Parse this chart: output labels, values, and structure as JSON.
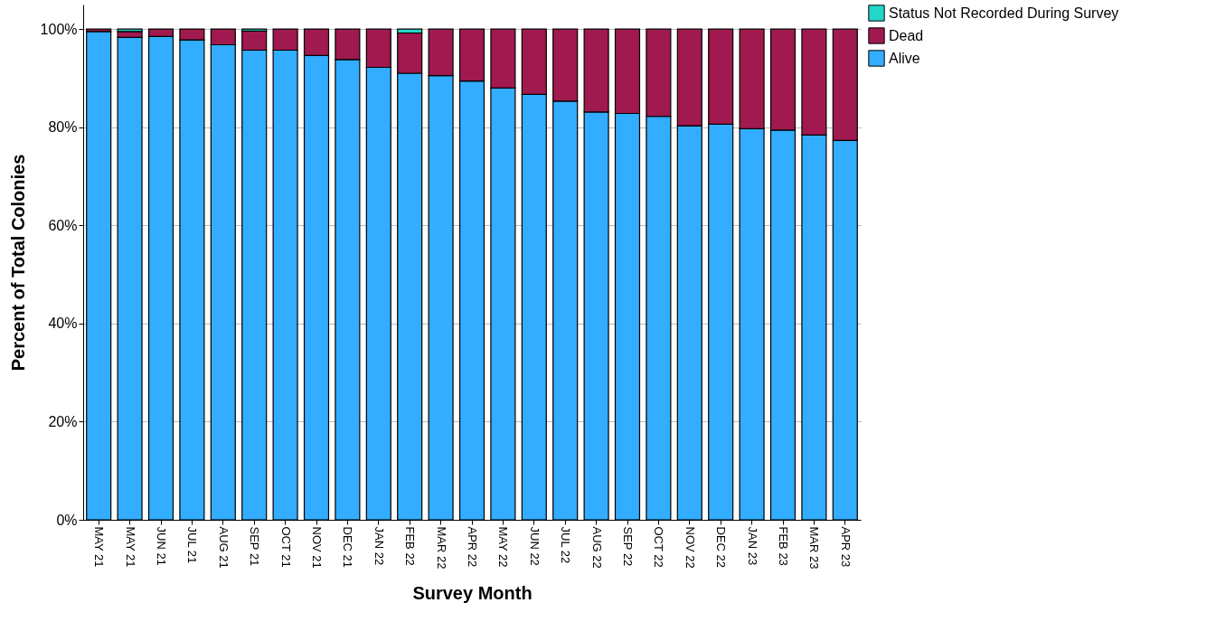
{
  "chart_data": {
    "type": "bar",
    "stacked": true,
    "xlabel": "Survey Month",
    "ylabel": "Percent of Total Colonies",
    "categories": [
      "MAY 21",
      "MAY 21",
      "JUN 21",
      "JUL 21",
      "AUG 21",
      "SEP 21",
      "OCT 21",
      "NOV 21",
      "DEC 21",
      "JAN 22",
      "FEB 22",
      "MAR 22",
      "APR 22",
      "MAY 22",
      "JUN 22",
      "JUL 22",
      "AUG 22",
      "SEP 22",
      "OCT 22",
      "NOV 22",
      "DEC 22",
      "JAN 23",
      "FEB 23",
      "MAR 23",
      "APR 23"
    ],
    "series": [
      {
        "name": "Alive",
        "color": "#33adff",
        "values": [
          99.5,
          98.3,
          98.5,
          97.8,
          96.8,
          95.7,
          95.7,
          94.6,
          93.8,
          92.2,
          91.0,
          90.5,
          89.4,
          88.0,
          86.7,
          85.3,
          83.1,
          82.8,
          82.2,
          80.3,
          80.6,
          79.7,
          79.4,
          78.4,
          77.3
        ]
      },
      {
        "name": "Dead",
        "color": "#a0194f",
        "values": [
          0.5,
          1.2,
          1.5,
          2.2,
          3.2,
          3.9,
          4.3,
          5.4,
          6.2,
          7.8,
          8.2,
          9.5,
          10.6,
          12.0,
          13.3,
          14.7,
          16.9,
          17.2,
          17.8,
          19.7,
          19.4,
          20.3,
          20.6,
          21.6,
          22.7
        ]
      },
      {
        "name": "Status Not Recorded During Survey",
        "color": "#22d6c8",
        "values": [
          null,
          0.5,
          null,
          null,
          null,
          0.4,
          null,
          null,
          null,
          null,
          0.8,
          null,
          null,
          null,
          null,
          null,
          null,
          null,
          null,
          null,
          null,
          null,
          null,
          null,
          null
        ]
      }
    ],
    "ylim": [
      0,
      105
    ],
    "yticks": [
      {
        "value": 0,
        "label": "0%"
      },
      {
        "value": 20,
        "label": "20%"
      },
      {
        "value": 40,
        "label": "40%"
      },
      {
        "value": 60,
        "label": "60%"
      },
      {
        "value": 80,
        "label": "80%"
      },
      {
        "value": 100,
        "label": "100%"
      }
    ],
    "grid": "y",
    "legend": "top right"
  }
}
